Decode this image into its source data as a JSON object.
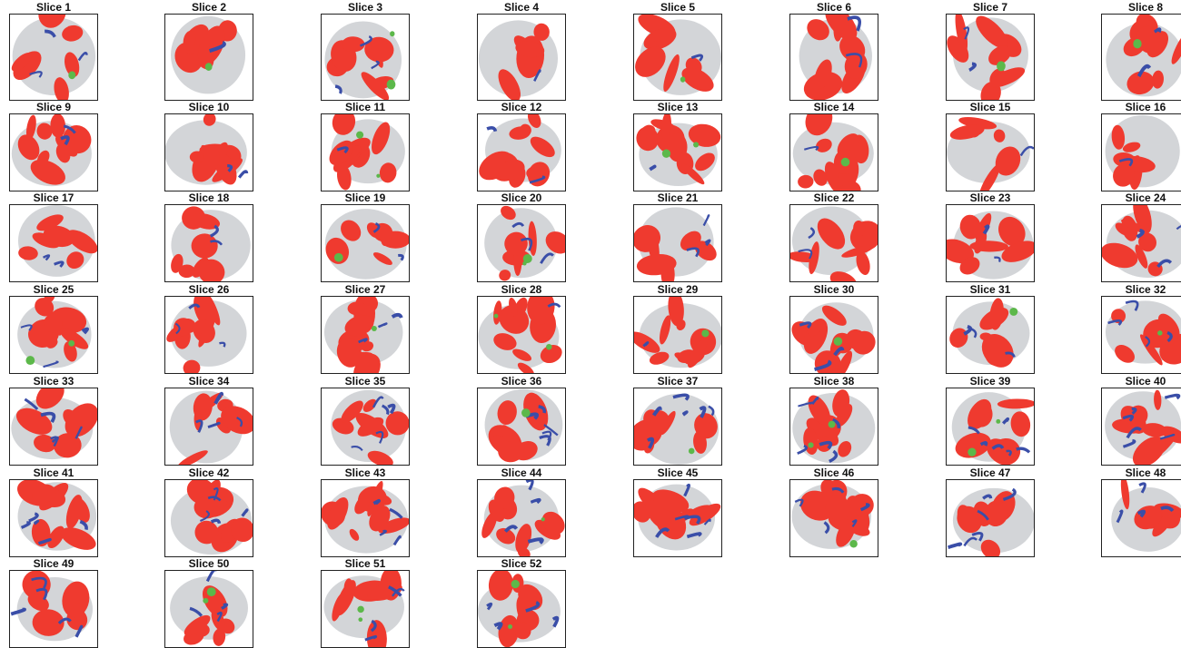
{
  "figure": {
    "panels": [
      {
        "title": "Slice 1"
      },
      {
        "title": "Slice 2"
      },
      {
        "title": "Slice 3"
      },
      {
        "title": "Slice 4"
      },
      {
        "title": "Slice 5"
      },
      {
        "title": "Slice 6"
      },
      {
        "title": "Slice 7"
      },
      {
        "title": "Slice 8"
      },
      {
        "title": "Slice 9"
      },
      {
        "title": "Slice 10"
      },
      {
        "title": "Slice 11"
      },
      {
        "title": "Slice 12"
      },
      {
        "title": "Slice 13"
      },
      {
        "title": "Slice 14"
      },
      {
        "title": "Slice 15"
      },
      {
        "title": "Slice 16"
      },
      {
        "title": "Slice 17"
      },
      {
        "title": "Slice 18"
      },
      {
        "title": "Slice 19"
      },
      {
        "title": "Slice 20"
      },
      {
        "title": "Slice 21"
      },
      {
        "title": "Slice 22"
      },
      {
        "title": "Slice 23"
      },
      {
        "title": "Slice 24"
      },
      {
        "title": "Slice 25"
      },
      {
        "title": "Slice 26"
      },
      {
        "title": "Slice 27"
      },
      {
        "title": "Slice 28"
      },
      {
        "title": "Slice 29"
      },
      {
        "title": "Slice 30"
      },
      {
        "title": "Slice 31"
      },
      {
        "title": "Slice 32"
      },
      {
        "title": "Slice 33"
      },
      {
        "title": "Slice 34"
      },
      {
        "title": "Slice 35"
      },
      {
        "title": "Slice 36"
      },
      {
        "title": "Slice 37"
      },
      {
        "title": "Slice 38"
      },
      {
        "title": "Slice 39"
      },
      {
        "title": "Slice 40"
      },
      {
        "title": "Slice 41"
      },
      {
        "title": "Slice 42"
      },
      {
        "title": "Slice 43"
      },
      {
        "title": "Slice 44"
      },
      {
        "title": "Slice 45"
      },
      {
        "title": "Slice 46"
      },
      {
        "title": "Slice 47"
      },
      {
        "title": "Slice 48"
      },
      {
        "title": "Slice 49"
      },
      {
        "title": "Slice 50"
      },
      {
        "title": "Slice 51"
      },
      {
        "title": "Slice 52"
      }
    ]
  },
  "colors": {
    "background_tissue": "#d3d5d8",
    "class_red": "#ef3a2f",
    "class_blue": "#3a4ea8",
    "class_green": "#5cb84a",
    "frame": "#222222"
  }
}
